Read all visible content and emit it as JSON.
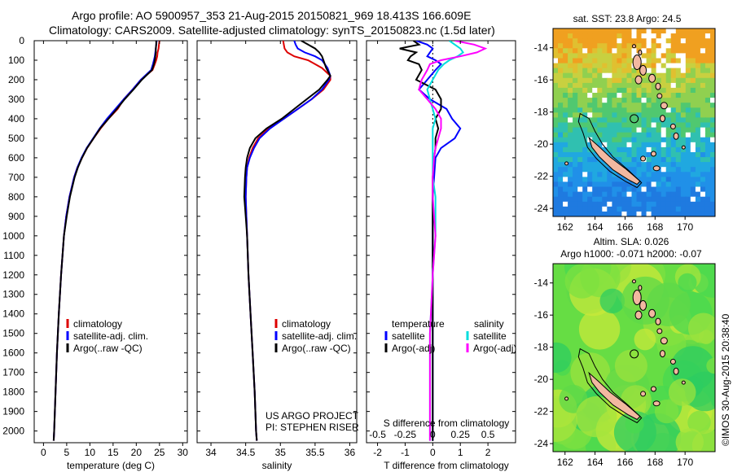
{
  "header": {
    "line1": "Argo profile: AO 5900957_353 21-Aug-2015 20150821_969 18.413S 166.609E",
    "line2": "Climatology: CARS2009. Satellite-adjusted climatology: synTS_20150823.nc (1.5d later)"
  },
  "depth_ticks": [
    "0",
    "100",
    "200",
    "300",
    "400",
    "500",
    "600",
    "700",
    "800",
    "900",
    "1000",
    "1100",
    "1200",
    "1300",
    "1400",
    "1500",
    "1600",
    "1700",
    "1800",
    "1900",
    "2000"
  ],
  "colors": {
    "climatology": "#dd0000",
    "satellite": "#0000ff",
    "argo": "#000000",
    "satellite_s": "#00dddd",
    "argo_s": "#ff00ff"
  },
  "chart_data": [
    {
      "type": "line",
      "xlabel": "temperature (deg C)",
      "xlim": [
        -2,
        31
      ],
      "x_ticks": [
        "0",
        "5",
        "10",
        "15",
        "20",
        "25",
        "30"
      ],
      "ylim": [
        0,
        2060
      ],
      "legend": [
        "climatology",
        "satellite-adj. clim.",
        "Argo(..raw -QC)"
      ],
      "series": [
        {
          "name": "climatology",
          "color": "#dd0000",
          "depth": [
            0,
            20,
            40,
            60,
            80,
            100,
            120,
            150,
            200,
            250,
            300,
            350,
            400,
            450,
            500,
            550,
            600,
            650,
            700,
            800,
            900,
            1000,
            1200,
            1400,
            1600,
            1800,
            2000,
            2050
          ],
          "values": [
            25.0,
            24.9,
            24.8,
            24.6,
            24.5,
            24.3,
            24.0,
            23.5,
            21.0,
            19.2,
            17.3,
            16.0,
            14.0,
            12.3,
            10.8,
            9.4,
            8.3,
            7.3,
            6.6,
            5.6,
            4.9,
            4.4,
            3.8,
            3.3,
            2.9,
            2.6,
            2.3,
            2.2
          ]
        },
        {
          "name": "satellite-adj. clim.",
          "color": "#0000ff",
          "depth": [
            0,
            20,
            40,
            60,
            80,
            100,
            120,
            150,
            200,
            250,
            300,
            350,
            400,
            450,
            500,
            550,
            600,
            650,
            700,
            800,
            900,
            1000,
            1200,
            1400,
            1600,
            1800,
            2000,
            2050
          ],
          "values": [
            24.4,
            24.3,
            24.2,
            24.1,
            24.0,
            23.8,
            23.6,
            23.2,
            21.0,
            19.2,
            17.3,
            15.5,
            13.7,
            12.1,
            10.7,
            9.3,
            8.2,
            7.3,
            6.6,
            5.6,
            4.9,
            4.4,
            3.8,
            3.3,
            2.9,
            2.6,
            2.3,
            2.2
          ]
        },
        {
          "name": "Argo(..raw -QC)",
          "color": "#000000",
          "depth": [
            0,
            20,
            40,
            60,
            80,
            100,
            120,
            150,
            200,
            250,
            300,
            350,
            400,
            450,
            500,
            550,
            600,
            650,
            700,
            800,
            900,
            1000,
            1200,
            1400,
            1600,
            1800,
            2000,
            2050
          ],
          "values": [
            24.3,
            24.3,
            24.2,
            24.2,
            24.1,
            24.0,
            23.8,
            23.4,
            21.2,
            19.4,
            17.5,
            15.8,
            14.0,
            12.2,
            10.8,
            9.4,
            8.3,
            7.4,
            6.7,
            5.7,
            5.0,
            4.4,
            3.8,
            3.3,
            2.9,
            2.6,
            2.3,
            2.2
          ]
        }
      ]
    },
    {
      "type": "line",
      "xlabel": "salinity",
      "xlim": [
        33.8,
        36.1
      ],
      "x_ticks": [
        "34",
        "34.5",
        "35",
        "35.5",
        "36"
      ],
      "ylim": [
        0,
        2060
      ],
      "legend": [
        "climatology",
        "satellite-adj. clim.",
        "Argo(..raw -QC)"
      ],
      "series": [
        {
          "name": "climatology",
          "color": "#dd0000",
          "depth": [
            0,
            20,
            40,
            60,
            80,
            100,
            140,
            180,
            200,
            250,
            300,
            350,
            400,
            450,
            500,
            550,
            600,
            650,
            700,
            800,
            900,
            1000,
            1200,
            1400,
            1600,
            1800,
            2000,
            2050
          ],
          "values": [
            35.04,
            35.05,
            35.06,
            35.1,
            35.2,
            35.4,
            35.6,
            35.72,
            35.72,
            35.62,
            35.45,
            35.25,
            35.05,
            34.83,
            34.68,
            34.6,
            34.55,
            34.52,
            34.51,
            34.5,
            34.51,
            34.52,
            34.54,
            34.57,
            34.6,
            34.63,
            34.65,
            34.66
          ]
        },
        {
          "name": "satellite-adj. clim.",
          "color": "#0000ff",
          "depth": [
            0,
            20,
            40,
            60,
            80,
            100,
            140,
            180,
            200,
            250,
            300,
            350,
            400,
            450,
            500,
            550,
            600,
            650,
            700,
            800,
            900,
            1000,
            1200,
            1400,
            1600,
            1800,
            2000,
            2050
          ],
          "values": [
            35.2,
            35.22,
            35.25,
            35.35,
            35.5,
            35.6,
            35.68,
            35.72,
            35.7,
            35.6,
            35.45,
            35.25,
            35.05,
            34.85,
            34.7,
            34.62,
            34.56,
            34.52,
            34.51,
            34.5,
            34.51,
            34.52,
            34.54,
            34.57,
            34.6,
            34.63,
            34.65,
            34.66
          ]
        },
        {
          "name": "Argo(..raw -QC)",
          "color": "#000000",
          "depth": [
            0,
            20,
            40,
            60,
            80,
            100,
            140,
            180,
            200,
            250,
            300,
            350,
            400,
            450,
            500,
            550,
            600,
            650,
            700,
            800,
            900,
            1000,
            1200,
            1400,
            1600,
            1800,
            2000,
            2050
          ],
          "values": [
            35.3,
            35.4,
            35.5,
            35.56,
            35.6,
            35.62,
            35.66,
            35.72,
            35.68,
            35.56,
            35.38,
            35.2,
            35.02,
            34.8,
            34.64,
            34.56,
            34.52,
            34.5,
            34.49,
            34.48,
            34.5,
            34.52,
            34.54,
            34.57,
            34.6,
            34.63,
            34.65,
            34.66
          ]
        }
      ]
    },
    {
      "type": "line",
      "xlabel": "T difference from climatology",
      "xlabel_top": "S difference from climatology",
      "xlim": [
        -2.4,
        3.0
      ],
      "x_ticks": [
        "-2",
        "-1",
        "0",
        "1",
        "2"
      ],
      "x_ticks_top": [
        "-0.5",
        "-0.25",
        "0",
        "0.25",
        "0.5"
      ],
      "x_ticks_top_values": [
        -2,
        -1,
        0,
        1,
        2
      ],
      "ylim": [
        0,
        2060
      ],
      "legend": {
        "temperature": "temperature",
        "salinity": "salinity",
        "satellite": "satellite",
        "argo": "Argo(-adj)"
      },
      "series": [
        {
          "name": "temperature satellite",
          "color": "#0000ff",
          "depth": [
            0,
            20,
            40,
            60,
            80,
            100,
            120,
            150,
            200,
            250,
            300,
            350,
            400,
            450,
            500,
            550,
            600,
            700,
            800,
            1000,
            1200,
            1500,
            1800,
            2050
          ],
          "values": [
            -0.6,
            -0.2,
            0.0,
            -0.1,
            -0.2,
            0.1,
            0.3,
            0.1,
            -0.2,
            -0.5,
            -0.1,
            0.5,
            0.7,
            1.0,
            0.8,
            0.3,
            0.1,
            0.05,
            0.0,
            0.0,
            0.0,
            0.0,
            0.0,
            0.0
          ]
        },
        {
          "name": "temperature Argo(-adj)",
          "color": "#000000",
          "depth": [
            0,
            20,
            40,
            60,
            80,
            100,
            120,
            150,
            200,
            250,
            300,
            350,
            400,
            450,
            500,
            550,
            600,
            700,
            800,
            1000,
            1200,
            1500,
            1800,
            2050
          ],
          "values": [
            -0.7,
            -0.5,
            -1.2,
            -0.6,
            -0.8,
            -0.9,
            -0.5,
            -0.4,
            -0.6,
            0.1,
            0.3,
            0.3,
            0.1,
            0.2,
            0.1,
            0.1,
            0.05,
            0.0,
            0.0,
            0.0,
            0.0,
            0.0,
            0.0,
            0.0
          ]
        },
        {
          "name": "salinity satellite",
          "color": "#00dddd",
          "depth": [
            0,
            20,
            40,
            60,
            80,
            100,
            120,
            150,
            200,
            250,
            300,
            350,
            400,
            450,
            500,
            550,
            600,
            700,
            800,
            1000,
            1200,
            1500,
            1800,
            2050
          ],
          "values": [
            0.6,
            0.8,
            1.0,
            1.1,
            0.9,
            0.6,
            0.4,
            0.2,
            0.0,
            -0.2,
            -0.1,
            0.0,
            0.1,
            0.0,
            0.0,
            0.0,
            0.0,
            0.0,
            0.1,
            0.1,
            0.0,
            -0.1,
            -0.1,
            -0.1
          ]
        },
        {
          "name": "salinity Argo(-adj)",
          "color": "#ff00ff",
          "depth": [
            0,
            20,
            40,
            60,
            80,
            100,
            120,
            150,
            200,
            250,
            300,
            350,
            400,
            450,
            500,
            550,
            600,
            700,
            800,
            1000,
            1200,
            1500,
            1800,
            2050
          ],
          "values": [
            0.8,
            1.5,
            1.9,
            1.6,
            1.0,
            0.3,
            -0.1,
            -0.2,
            -0.4,
            -0.5,
            -0.2,
            0.1,
            0.3,
            0.3,
            0.2,
            0.1,
            0.05,
            0.0,
            0.0,
            0.1,
            0.0,
            -0.1,
            -0.1,
            -0.1
          ]
        }
      ]
    },
    {
      "type": "heatmap",
      "title": "sat. SST: 23.8  Argo: 24.5",
      "x_ticks": [
        "162",
        "164",
        "166",
        "168",
        "170"
      ],
      "x_tick_values": [
        162,
        164,
        166,
        168,
        170
      ],
      "y_ticks": [
        "-14",
        "-16",
        "-18",
        "-20",
        "-22",
        "-24"
      ],
      "y_tick_values": [
        -14,
        -16,
        -18,
        -20,
        -22,
        -24
      ],
      "xlim": [
        161.2,
        172.0
      ],
      "ylim": [
        -24.5,
        -12.8
      ],
      "argo_position": {
        "lon": 166.609,
        "lat": -18.413
      }
    },
    {
      "type": "heatmap",
      "title_line1": "Altim. SLA: 0.026",
      "title_line2": "Argo h1000: -0.071 h2000: -0.07",
      "x_ticks": [
        "162",
        "164",
        "166",
        "168",
        "170"
      ],
      "x_tick_values": [
        162,
        164,
        166,
        168,
        170
      ],
      "y_ticks": [
        "-14",
        "-16",
        "-18",
        "-20",
        "-22",
        "-24"
      ],
      "y_tick_values": [
        -14,
        -16,
        -18,
        -20,
        -22,
        -24
      ],
      "xlim": [
        161.2,
        172.0
      ],
      "ylim": [
        -24.5,
        -12.8
      ],
      "argo_position": {
        "lon": 166.609,
        "lat": -18.413
      }
    }
  ],
  "annotations": {
    "project1": "US ARGO PROJECT",
    "project2": "PI: STEPHEN RISER",
    "credit": "©IMOS 30-Aug-2015 20:38:40"
  }
}
